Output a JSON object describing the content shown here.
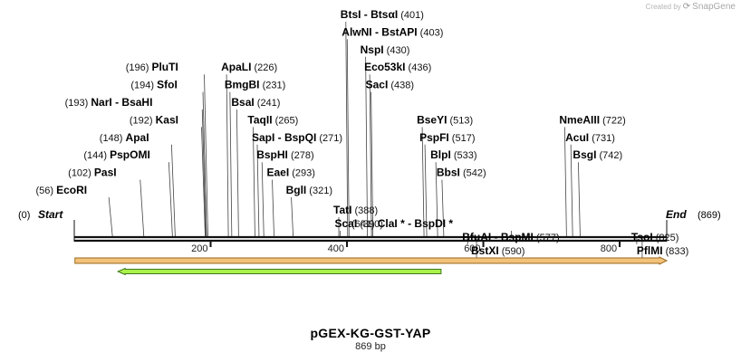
{
  "credit": {
    "prefix": "Created by",
    "brand": "SnapGene",
    "logo_icon": "snapgene-logo-icon"
  },
  "plasmid": {
    "name": "pGEX-KG-GST-YAP",
    "length_label": "869 bp",
    "length": 869
  },
  "ends": {
    "start_label": "Start",
    "start_pos": "(0)",
    "end_label": "End",
    "end_pos": "(869)"
  },
  "axis": {
    "ticks": [
      200,
      400,
      600,
      800
    ]
  },
  "colors": {
    "backbone": "#111111",
    "feature_orange_fill": "#f3c27a",
    "feature_orange_stroke": "#9a6a1e",
    "feature_green_fill": "#aaf04c",
    "feature_green_stroke": "#3e7a18"
  },
  "features": [
    {
      "name": "orange-feature",
      "start": 1,
      "end": 869,
      "row": 1,
      "direction": "forward"
    },
    {
      "name": "green-feature",
      "start": 64,
      "end": 538,
      "row": 2,
      "direction": "reverse"
    }
  ],
  "sites": [
    {
      "name": "EcoRI",
      "pos": 56,
      "pos_label": "(56)",
      "side": "left",
      "row": 0
    },
    {
      "name": "PasI",
      "pos": 102,
      "pos_label": "(102)",
      "side": "left",
      "row": 1
    },
    {
      "name": "PspOMI",
      "pos": 144,
      "pos_label": "(144)",
      "side": "left",
      "row": 2
    },
    {
      "name": "ApaI",
      "pos": 148,
      "pos_label": "(148)",
      "side": "left",
      "row": 3
    },
    {
      "name": "KasI",
      "pos": 192,
      "pos_label": "(192)",
      "side": "left",
      "row": 4
    },
    {
      "name": "NarI",
      "name2": "BsaHI",
      "pos": 193,
      "pos_label": "(193)",
      "side": "left",
      "row": 5
    },
    {
      "name": "SfoI",
      "pos": 194,
      "pos_label": "(194)",
      "side": "left",
      "row": 6
    },
    {
      "name": "PluTI",
      "pos": 196,
      "pos_label": "(196)",
      "side": "left",
      "row": 7
    },
    {
      "name": "ApaLI",
      "pos": 226,
      "pos_label": "(226)",
      "side": "right",
      "row": 7
    },
    {
      "name": "BmgBI",
      "pos": 231,
      "pos_label": "(231)",
      "side": "right",
      "row": 6
    },
    {
      "name": "BsaI",
      "pos": 241,
      "pos_label": "(241)",
      "side": "right",
      "row": 5
    },
    {
      "name": "TaqII",
      "pos": 265,
      "pos_label": "(265)",
      "side": "right",
      "row": 4
    },
    {
      "name": "SapI",
      "name2": "BspQI",
      "pos": 271,
      "pos_label": "(271)",
      "side": "right",
      "row": 3
    },
    {
      "name": "BspHI",
      "pos": 278,
      "pos_label": "(278)",
      "side": "right",
      "row": 2
    },
    {
      "name": "EaeI",
      "pos": 293,
      "pos_label": "(293)",
      "side": "right",
      "row": 1
    },
    {
      "name": "BglI",
      "pos": 321,
      "pos_label": "(321)",
      "side": "right",
      "row": 0
    },
    {
      "name": "TatI",
      "pos": 388,
      "pos_label": "(388)",
      "side": "right",
      "row": -1
    },
    {
      "name": "ScaI",
      "pos": 390,
      "pos_label": "(390)",
      "side": "right",
      "row": -2
    },
    {
      "name": "BtsI",
      "name2": "BtsαI",
      "pos": 401,
      "pos_label": "(401)",
      "side": "right",
      "row": 10
    },
    {
      "name": "AlwNI",
      "name2": "BstAPI",
      "pos": 403,
      "pos_label": "(403)",
      "side": "right",
      "row": 9
    },
    {
      "name": "NspI",
      "pos": 430,
      "pos_label": "(430)",
      "side": "right",
      "row": 8
    },
    {
      "name": "Eco53kI",
      "pos": 436,
      "pos_label": "(436)",
      "side": "right",
      "row": 7
    },
    {
      "name": "SacI",
      "pos": 438,
      "pos_label": "(438)",
      "side": "right",
      "row": 6
    },
    {
      "name": "BseYI",
      "pos": 513,
      "pos_label": "(513)",
      "side": "right",
      "row": 4
    },
    {
      "name": "PspFI",
      "pos": 517,
      "pos_label": "(517)",
      "side": "right",
      "row": 3
    },
    {
      "name": "BlpI",
      "pos": 533,
      "pos_label": "(533)",
      "side": "right",
      "row": 2
    },
    {
      "name": "BbsI",
      "pos": 542,
      "pos_label": "(542)",
      "side": "right",
      "row": 1
    },
    {
      "name": "BfuAI",
      "name2": "BspMI",
      "pos": 577,
      "pos_label": "(577)",
      "side": "right",
      "row": -3
    },
    {
      "name": "BstXI",
      "pos": 590,
      "pos_label": "(590)",
      "side": "right",
      "row": -4
    },
    {
      "name": "ClaI *",
      "name2": "BspDI *",
      "pos": 641,
      "pos_label": "(641)",
      "side": "left",
      "row": -2
    },
    {
      "name": "NmeAIII",
      "pos": 722,
      "pos_label": "(722)",
      "side": "right",
      "row": 4
    },
    {
      "name": "AcuI",
      "pos": 731,
      "pos_label": "(731)",
      "side": "right",
      "row": 3
    },
    {
      "name": "BsgI",
      "pos": 742,
      "pos_label": "(742)",
      "side": "right",
      "row": 2
    },
    {
      "name": "TsoI",
      "pos": 825,
      "pos_label": "(825)",
      "side": "right",
      "row": -3
    },
    {
      "name": "PflMI",
      "pos": 833,
      "pos_label": "(833)",
      "side": "right",
      "row": -4
    }
  ]
}
